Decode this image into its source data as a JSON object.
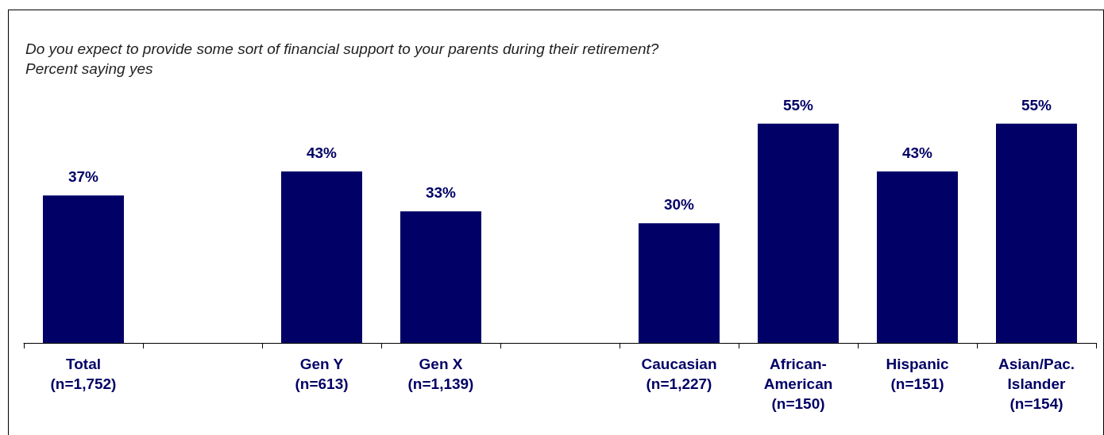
{
  "chart_data": {
    "type": "bar",
    "title": "Do you expect to provide some sort of financial support to your parents during their retirement?",
    "subtitle": "Percent saying yes",
    "categories": [
      "Total\n(n=1,752)",
      null,
      "Gen Y\n(n=613)",
      "Gen X\n(n=1,139)",
      null,
      "Caucasian\n(n=1,227)",
      "African-\nAmerican\n(n=150)",
      "Hispanic\n(n=151)",
      "Asian/Pac.\nIslander\n(n=154)"
    ],
    "values": [
      37,
      null,
      43,
      33,
      null,
      30,
      55,
      43,
      55
    ],
    "value_labels": [
      "37%",
      null,
      "43%",
      "33%",
      null,
      "30%",
      "55%",
      "43%",
      "55%"
    ],
    "color": "#000066"
  }
}
